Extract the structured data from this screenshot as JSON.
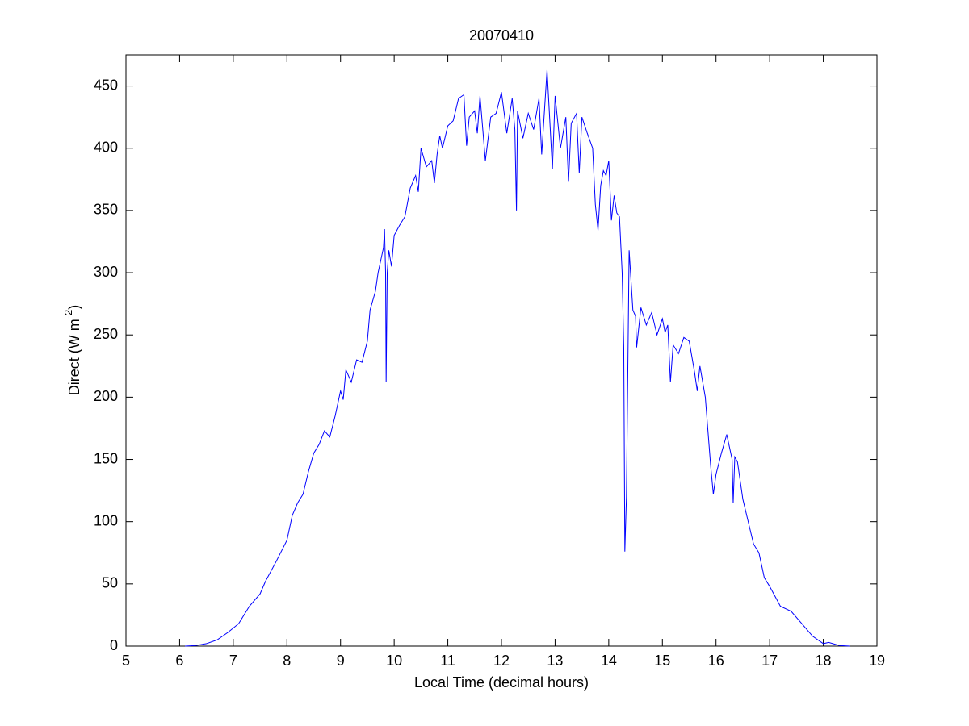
{
  "chart_data": {
    "type": "line",
    "title": "20070410",
    "x_label": "Local Time (decimal hours)",
    "y_label": {
      "text": "Direct (W m",
      "superscript": "-2",
      "suffix": ")"
    },
    "xlim": [
      5,
      19
    ],
    "xticks": [
      5,
      6,
      7,
      8,
      9,
      10,
      11,
      12,
      13,
      14,
      15,
      16,
      17,
      18,
      19
    ],
    "ylim": [
      0,
      475
    ],
    "yticks": [
      0,
      50,
      100,
      150,
      200,
      250,
      300,
      350,
      400,
      450
    ],
    "grid": false,
    "series": [
      {
        "color": "#0000ff",
        "x": [
          6.1,
          6.3,
          6.5,
          6.7,
          6.9,
          7.1,
          7.3,
          7.5,
          7.6,
          7.8,
          8.0,
          8.1,
          8.2,
          8.3,
          8.4,
          8.5,
          8.6,
          8.7,
          8.8,
          8.9,
          9.0,
          9.05,
          9.1,
          9.2,
          9.3,
          9.4,
          9.5,
          9.55,
          9.65,
          9.7,
          9.8,
          9.82,
          9.84,
          9.85,
          9.87,
          9.9,
          9.95,
          10.0,
          10.1,
          10.2,
          10.3,
          10.4,
          10.45,
          10.5,
          10.6,
          10.7,
          10.75,
          10.8,
          10.85,
          10.9,
          11.0,
          11.1,
          11.2,
          11.3,
          11.35,
          11.4,
          11.5,
          11.55,
          11.6,
          11.7,
          11.8,
          11.9,
          12.0,
          12.1,
          12.2,
          12.25,
          12.28,
          12.3,
          12.4,
          12.5,
          12.6,
          12.7,
          12.75,
          12.85,
          12.95,
          13.0,
          13.1,
          13.2,
          13.25,
          13.3,
          13.4,
          13.45,
          13.5,
          13.6,
          13.7,
          13.75,
          13.8,
          13.85,
          13.9,
          13.95,
          14.0,
          14.05,
          14.1,
          14.15,
          14.2,
          14.25,
          14.28,
          14.3,
          14.33,
          14.38,
          14.45,
          14.5,
          14.52,
          14.6,
          14.7,
          14.8,
          14.9,
          15.0,
          15.05,
          15.1,
          15.15,
          15.2,
          15.3,
          15.4,
          15.5,
          15.6,
          15.65,
          15.7,
          15.8,
          15.9,
          15.95,
          16.0,
          16.1,
          16.2,
          16.3,
          16.32,
          16.35,
          16.4,
          16.5,
          16.6,
          16.7,
          16.8,
          16.9,
          17.0,
          17.1,
          17.2,
          17.4,
          17.6,
          17.8,
          18.0,
          18.1,
          18.3,
          18.5
        ],
        "values": [
          0,
          0.5,
          2,
          5,
          11,
          18,
          32,
          42,
          52,
          68,
          85,
          105,
          115,
          122,
          140,
          155,
          162,
          173,
          168,
          185,
          205,
          198,
          222,
          212,
          230,
          228,
          245,
          270,
          285,
          300,
          320,
          335,
          300,
          212,
          300,
          318,
          305,
          330,
          338,
          345,
          368,
          378,
          365,
          400,
          385,
          390,
          372,
          395,
          410,
          400,
          418,
          422,
          440,
          443,
          402,
          425,
          430,
          412,
          442,
          390,
          425,
          428,
          445,
          412,
          440,
          415,
          350,
          430,
          408,
          428,
          415,
          440,
          395,
          463,
          383,
          442,
          400,
          425,
          373,
          420,
          428,
          380,
          425,
          412,
          400,
          355,
          334,
          370,
          382,
          378,
          390,
          342,
          362,
          348,
          345,
          300,
          240,
          76,
          120,
          318,
          270,
          265,
          240,
          272,
          258,
          268,
          250,
          263,
          252,
          258,
          212,
          242,
          235,
          248,
          245,
          220,
          205,
          225,
          200,
          145,
          122,
          138,
          155,
          170,
          150,
          115,
          152,
          148,
          118,
          100,
          82,
          75,
          55,
          48,
          40,
          32,
          28,
          18,
          8,
          2,
          3,
          0.5,
          0
        ]
      }
    ]
  }
}
